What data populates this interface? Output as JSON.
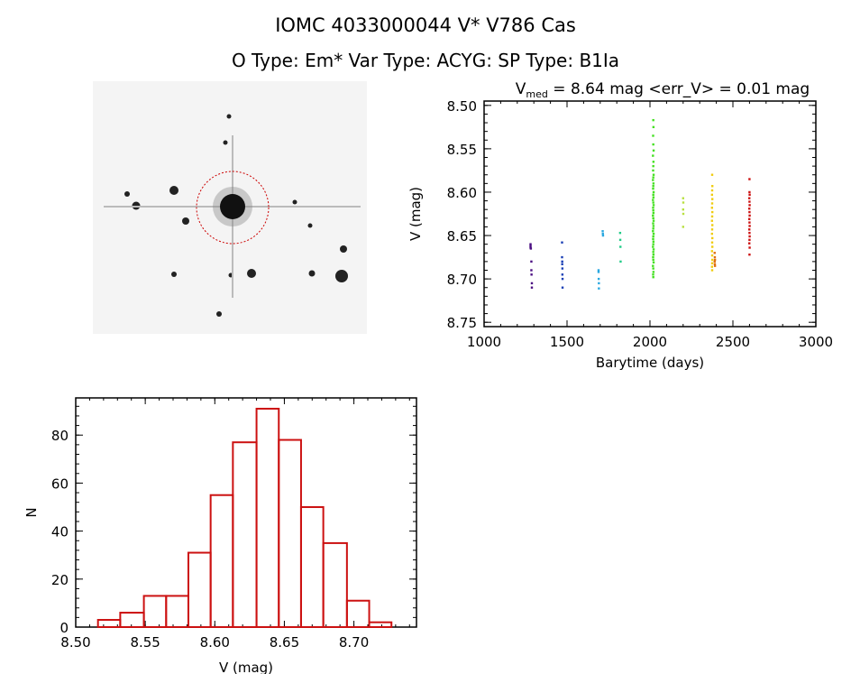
{
  "header": {
    "title_line1": "IOMC 4033000044    V* V786 Cas",
    "title_line2": "O Type: Em*  Var Type: ACYG:  SP Type: B1Ia"
  },
  "image_panel": {
    "description_icon": "sky-image-thumbnail",
    "marker_color": "#cc0000"
  },
  "chart_data": [
    {
      "type": "scatter",
      "title_prefix": "V",
      "title_sub": "med",
      "title_rest": " = 8.64 mag <err_V> = 0.01 mag",
      "xlabel": "Barytime (days)",
      "ylabel": "V (mag)",
      "xlim": [
        1000,
        3000
      ],
      "ylim": [
        8.495,
        8.755
      ],
      "y_inverted": true,
      "xticks": [
        1000,
        1500,
        2000,
        2500,
        3000
      ],
      "xtick_labels": [
        "1000",
        "1500",
        "2000",
        "2500",
        "3000"
      ],
      "yticks": [
        8.5,
        8.55,
        8.6,
        8.65,
        8.7,
        8.75
      ],
      "ytick_labels": [
        "8.50",
        "8.55",
        "8.60",
        "8.65",
        "8.70",
        "8.75"
      ],
      "grid": false,
      "series": [
        {
          "color": "#4b0f82",
          "x": [
            1280,
            1280,
            1280,
            1282,
            1285,
            1285,
            1286,
            1288,
            1288
          ],
          "y": [
            8.66,
            8.662,
            8.664,
            8.665,
            8.68,
            8.69,
            8.695,
            8.705,
            8.71
          ]
        },
        {
          "color": "#1a3fb5",
          "x": [
            1470,
            1470,
            1471,
            1471,
            1472,
            1472,
            1473,
            1473
          ],
          "y": [
            8.658,
            8.675,
            8.68,
            8.683,
            8.688,
            8.695,
            8.7,
            8.71
          ]
        },
        {
          "color": "#2aa8e0",
          "x": [
            1690,
            1690,
            1691,
            1692,
            1692,
            1715,
            1716,
            1717
          ],
          "y": [
            8.69,
            8.692,
            8.7,
            8.705,
            8.711,
            8.645,
            8.648,
            8.65
          ]
        },
        {
          "color": "#22cc88",
          "x": [
            1820,
            1821,
            1822,
            1823
          ],
          "y": [
            8.647,
            8.655,
            8.663,
            8.68
          ]
        },
        {
          "color": "#44e022",
          "x": [
            2020,
            2021,
            2019,
            2020,
            2022,
            2018,
            2021,
            2020,
            2019,
            2022,
            2020,
            2018,
            2021,
            2020,
            2019,
            2022,
            2020,
            2021,
            2018,
            2020,
            2022,
            2019,
            2020,
            2021,
            2018,
            2020,
            2022,
            2019,
            2021,
            2020,
            2018,
            2022,
            2020,
            2019,
            2021,
            2020,
            2018,
            2022,
            2020,
            2021,
            2019,
            2020,
            2022,
            2018,
            2020,
            2021,
            2019,
            2020
          ],
          "y": [
            8.517,
            8.525,
            8.535,
            8.545,
            8.552,
            8.558,
            8.565,
            8.57,
            8.575,
            8.58,
            8.583,
            8.586,
            8.59,
            8.593,
            8.596,
            8.6,
            8.603,
            8.606,
            8.609,
            8.612,
            8.615,
            8.618,
            8.621,
            8.624,
            8.627,
            8.63,
            8.633,
            8.636,
            8.639,
            8.642,
            8.645,
            8.648,
            8.651,
            8.654,
            8.657,
            8.66,
            8.663,
            8.666,
            8.669,
            8.672,
            8.675,
            8.678,
            8.681,
            8.685,
            8.688,
            8.692,
            8.695,
            8.698
          ]
        },
        {
          "color": "#b8e040",
          "x": [
            2200,
            2201,
            2200,
            2201,
            2200
          ],
          "y": [
            8.607,
            8.612,
            8.62,
            8.625,
            8.64
          ]
        },
        {
          "color": "#f0cc10",
          "x": [
            2375,
            2376,
            2375,
            2374,
            2376,
            2375,
            2374,
            2376,
            2375,
            2374,
            2376,
            2375,
            2374,
            2376,
            2375,
            2376,
            2374,
            2375,
            2376,
            2375,
            2374,
            2375
          ],
          "y": [
            8.58,
            8.593,
            8.598,
            8.603,
            8.608,
            8.613,
            8.618,
            8.623,
            8.628,
            8.633,
            8.638,
            8.643,
            8.648,
            8.653,
            8.658,
            8.663,
            8.668,
            8.673,
            8.678,
            8.682,
            8.686,
            8.69
          ]
        },
        {
          "color": "#e07010",
          "x": [
            2390,
            2391,
            2392,
            2390,
            2391,
            2392
          ],
          "y": [
            8.67,
            8.675,
            8.678,
            8.68,
            8.683,
            8.685
          ]
        },
        {
          "color": "#cc1111",
          "x": [
            2600,
            2600,
            2601,
            2599,
            2600,
            2601,
            2599,
            2600,
            2601,
            2599,
            2600,
            2601,
            2599,
            2600,
            2601,
            2600,
            2599,
            2601,
            2600
          ],
          "y": [
            8.585,
            8.6,
            8.603,
            8.607,
            8.611,
            8.615,
            8.619,
            8.623,
            8.627,
            8.631,
            8.635,
            8.639,
            8.643,
            8.647,
            8.651,
            8.655,
            8.659,
            8.664,
            8.672
          ]
        }
      ]
    },
    {
      "type": "bar",
      "subtype": "histogram",
      "xlabel": "V (mag)",
      "ylabel": "N",
      "xlim": [
        8.5,
        8.745
      ],
      "ylim": [
        0,
        95.5
      ],
      "xticks": [
        8.5,
        8.55,
        8.6,
        8.65,
        8.7
      ],
      "xtick_labels": [
        "8.50",
        "8.55",
        "8.60",
        "8.65",
        "8.70"
      ],
      "yticks": [
        0,
        20,
        40,
        60,
        80
      ],
      "ytick_labels": [
        "0",
        "20",
        "40",
        "60",
        "80"
      ],
      "bin_edges": [
        8.516,
        8.532,
        8.549,
        8.565,
        8.581,
        8.597,
        8.613,
        8.63,
        8.646,
        8.662,
        8.678,
        8.695,
        8.711,
        8.727
      ],
      "values": [
        3,
        6,
        13,
        13,
        31,
        55,
        77,
        91,
        78,
        50,
        35,
        11,
        2
      ],
      "color": "#cc1111",
      "grid": false
    }
  ]
}
